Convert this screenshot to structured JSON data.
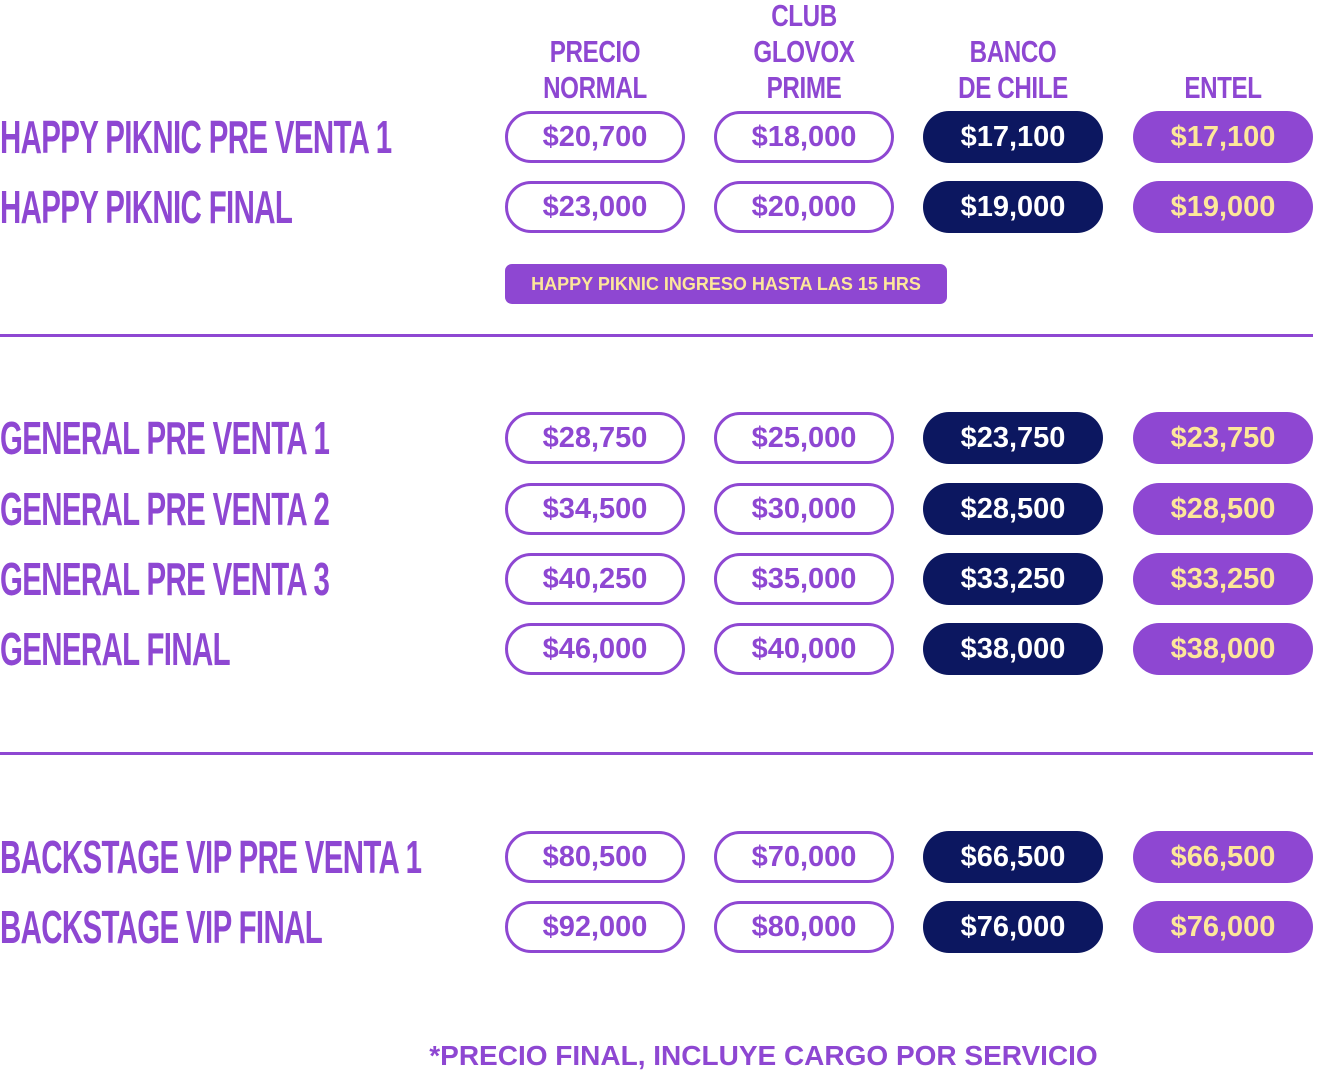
{
  "columns": [
    {
      "lines": [
        "PRECIO",
        "NORMAL"
      ]
    },
    {
      "lines": [
        "CLUB",
        "GLOVOX",
        "PRIME"
      ]
    },
    {
      "lines": [
        "BANCO",
        "DE CHILE"
      ]
    },
    {
      "lines": [
        "ENTEL"
      ]
    }
  ],
  "rows": [
    {
      "label": "HAPPY PIKNIC PRE VENTA 1",
      "prices": [
        "$20,700",
        "$18,000",
        "$17,100",
        "$17,100"
      ]
    },
    {
      "label": "HAPPY PIKNIC FINAL",
      "prices": [
        "$23,000",
        "$20,000",
        "$19,000",
        "$19,000"
      ]
    },
    {
      "label": "GENERAL PRE VENTA 1",
      "prices": [
        "$28,750",
        "$25,000",
        "$23,750",
        "$23,750"
      ]
    },
    {
      "label": "GENERAL PRE VENTA 2",
      "prices": [
        "$34,500",
        "$30,000",
        "$28,500",
        "$28,500"
      ]
    },
    {
      "label": "GENERAL PRE VENTA 3",
      "prices": [
        "$40,250",
        "$35,000",
        "$33,250",
        "$33,250"
      ]
    },
    {
      "label": "GENERAL FINAL",
      "prices": [
        "$46,000",
        "$40,000",
        "$38,000",
        "$38,000"
      ]
    },
    {
      "label": "BACKSTAGE VIP PRE VENTA 1",
      "prices": [
        "$80,500",
        "$70,000",
        "$66,500",
        "$66,500"
      ]
    },
    {
      "label": "BACKSTAGE VIP FINAL",
      "prices": [
        "$92,000",
        "$80,000",
        "$76,000",
        "$76,000"
      ]
    }
  ],
  "note": "HAPPY PIKNIC INGRESO HASTA LAS 15 HRS",
  "footer": "*PRECIO FINAL, INCLUYE CARGO POR SERVICIO",
  "colors": {
    "purple": "#8e47d2",
    "navy": "#0c1760",
    "yellow": "#fde79a"
  }
}
